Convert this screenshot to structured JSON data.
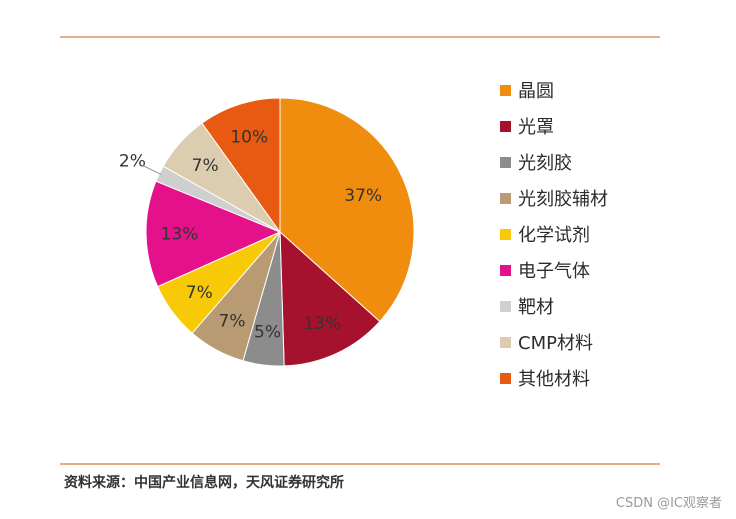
{
  "chart_data": {
    "type": "pie",
    "categories": [
      "晶圆",
      "光罩",
      "光刻胶",
      "光刻胶辅材",
      "化学试剂",
      "电子气体",
      "靶材",
      "CMP材料",
      "其他材料"
    ],
    "values": [
      37,
      13,
      5,
      7,
      7,
      13,
      2,
      7,
      10
    ],
    "data_labels": [
      "37%",
      "13%",
      "5%",
      "7%",
      "7%",
      "13%",
      "2%",
      "7%",
      "10%"
    ],
    "colors": [
      "#f08c0e",
      "#a6122e",
      "#8c8c8c",
      "#b89b72",
      "#f7c906",
      "#e5118b",
      "#cfcfcf",
      "#dccdb0",
      "#e85a12"
    ],
    "label_colors": [
      "#333333",
      "#333333",
      "#333333",
      "#333333",
      "#333333",
      "#333333",
      "#333333",
      "#333333",
      "#333333"
    ],
    "start_angle_deg": 0,
    "direction": "clockwise",
    "legend_position": "right"
  },
  "legend": {
    "items": [
      "晶圆",
      "光罩",
      "光刻胶",
      "光刻胶辅材",
      "化学试剂",
      "电子气体",
      "靶材",
      "CMP材料",
      "其他材料"
    ]
  },
  "footer": {
    "source": "资料来源：中国产业信息网，天风证券研究所",
    "watermark": "CSDN @IC观察者"
  }
}
